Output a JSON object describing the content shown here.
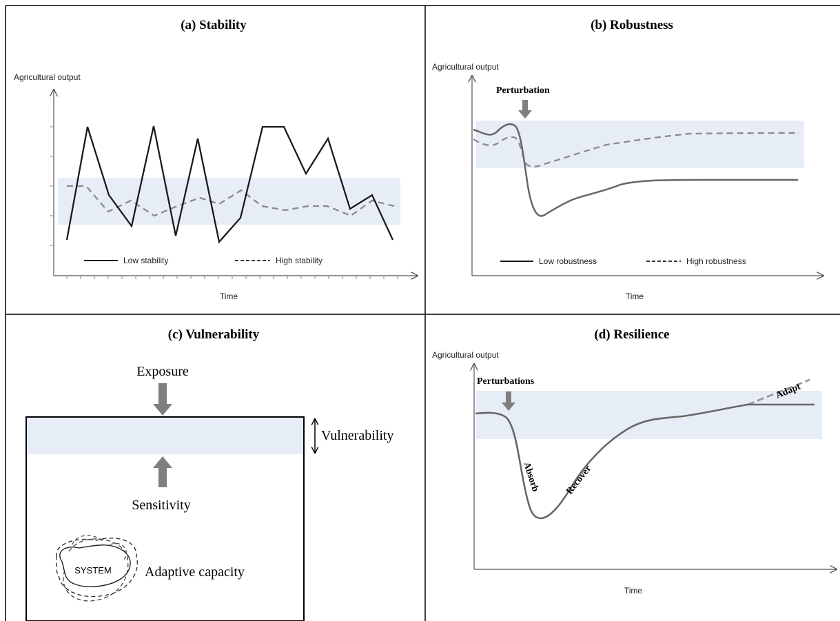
{
  "colors": {
    "band": "#e6edf7",
    "axis": "#555555",
    "low_line": "#1a1a1a",
    "high_line": "#8a8a8a",
    "arrow": "#7f7f7f",
    "border": "#000000"
  },
  "panel_a": {
    "title": "(a) Stability",
    "ylabel": "Agricultural output",
    "xlabel": "Time",
    "legend": {
      "low": "Low stability",
      "high": "High stability"
    }
  },
  "panel_b": {
    "title": "(b) Robustness",
    "ylabel": "Agricultural output",
    "xlabel": "Time",
    "perturbation_label": "Perturbation",
    "legend": {
      "low": "Low robustness",
      "high": "High robustness"
    }
  },
  "panel_c": {
    "title": "(c) Vulnerability",
    "exposure": "Exposure",
    "vulnerability": "Vulnerability",
    "sensitivity": "Sensitivity",
    "system": "SYSTEM",
    "adaptive_capacity": "Adaptive capacity"
  },
  "panel_d": {
    "title": "(d) Resilience",
    "ylabel": "Agricultural output",
    "xlabel": "Time",
    "perturbations_label": "Perturbations",
    "absorb": "Absorb",
    "recover": "Recover",
    "adapt": "Adapt"
  }
}
